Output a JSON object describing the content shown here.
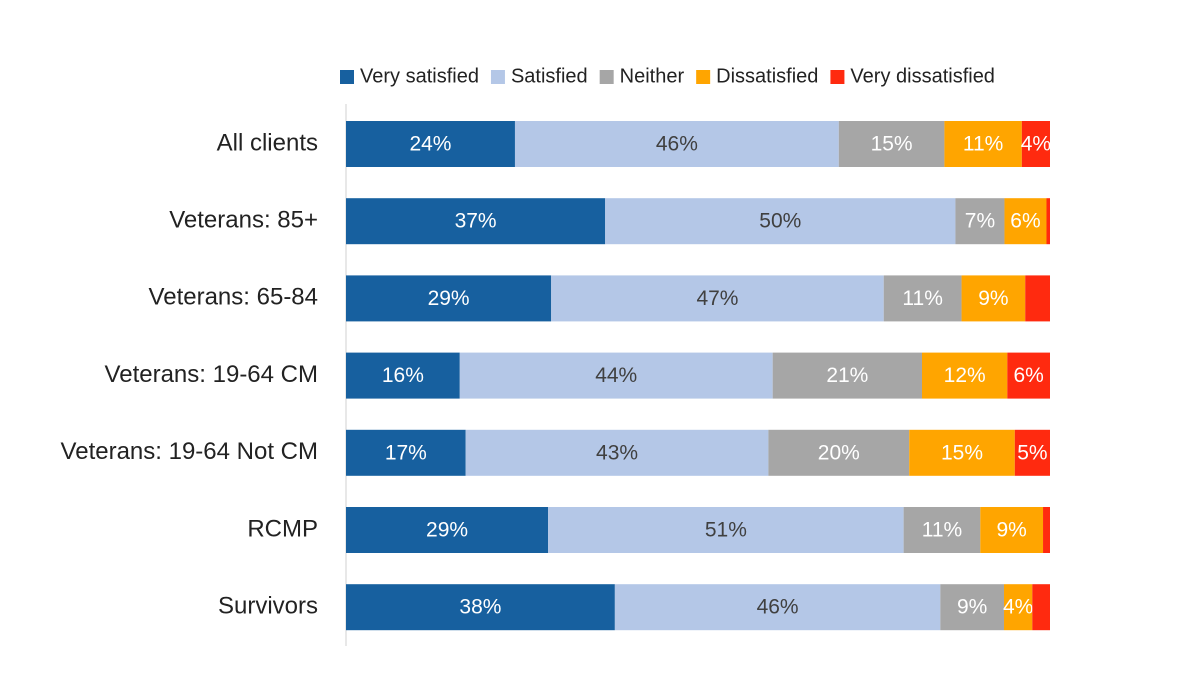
{
  "chart_data": {
    "type": "stacked-bar-horizontal",
    "categories": [
      "All clients",
      "Veterans: 85+",
      "Veterans: 65-84",
      "Veterans: 19-64 CM",
      "Veterans: 19-64 Not CM",
      "RCMP",
      "Survivors"
    ],
    "series": [
      {
        "name": "Very satisfied",
        "color": "#17609f",
        "values": [
          24,
          37,
          29,
          16,
          17,
          29,
          38
        ],
        "value_labels": [
          "24%",
          "37%",
          "29%",
          "16%",
          "17%",
          "29%",
          "38%"
        ]
      },
      {
        "name": "Satisfied",
        "color": "#b4c7e7",
        "values": [
          46,
          50,
          47,
          44,
          43,
          51,
          46
        ],
        "value_labels": [
          "46%",
          "50%",
          "47%",
          "44%",
          "43%",
          "51%",
          "46%"
        ]
      },
      {
        "name": "Neither",
        "color": "#a6a6a6",
        "values": [
          15,
          7,
          11,
          21,
          20,
          11,
          9
        ],
        "value_labels": [
          "15%",
          "7%",
          "11%",
          "21%",
          "20%",
          "11%",
          "9%"
        ]
      },
      {
        "name": "Dissatisfied",
        "color": "#ffa500",
        "values": [
          11,
          6,
          9,
          12,
          15,
          9,
          4
        ],
        "value_labels": [
          "11%",
          "6%",
          "9%",
          "12%",
          "15%",
          "9%",
          "4%"
        ]
      },
      {
        "name": "Very dissatisfied",
        "color": "#ff2a0f",
        "values": [
          4,
          0.5,
          3.5,
          6,
          5,
          1,
          2.5
        ],
        "value_labels": [
          "4%",
          null,
          null,
          "6%",
          "5%",
          null,
          null
        ]
      }
    ]
  }
}
